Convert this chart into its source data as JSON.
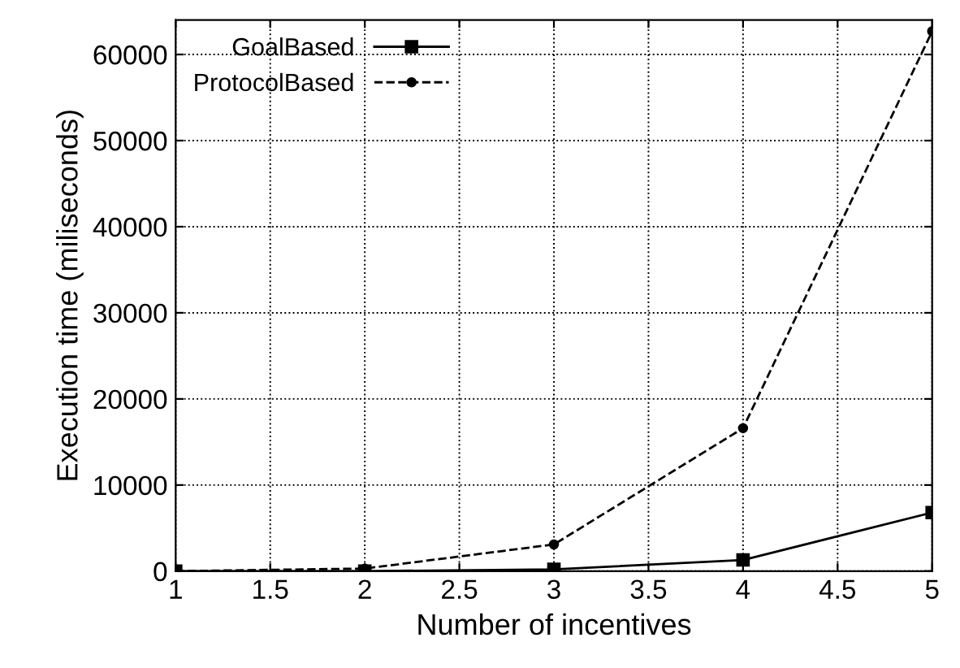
{
  "chart_data": {
    "type": "line",
    "xlabel": "Number of incentives",
    "ylabel": "Execution time (miliseconds)",
    "x": [
      1,
      2,
      3,
      4,
      5
    ],
    "series": [
      {
        "name": "GoalBased",
        "color": "#000000",
        "values": [
          0,
          0,
          200,
          1300,
          6800
        ],
        "marker": "square",
        "line_style": "solid"
      },
      {
        "name": "ProtocolBased",
        "color": "#000000",
        "values": [
          0,
          300,
          3100,
          16600,
          62700
        ],
        "marker": "circle",
        "line_style": "dashed"
      }
    ],
    "xlim": [
      1,
      5
    ],
    "xticks": [
      1,
      1.5,
      2,
      2.5,
      3,
      3.5,
      4,
      4.5,
      5
    ],
    "ylim": [
      0,
      64000
    ],
    "yticks": [
      0,
      10000,
      20000,
      30000,
      40000,
      50000,
      60000
    ],
    "grid": true,
    "legend": "top left"
  }
}
